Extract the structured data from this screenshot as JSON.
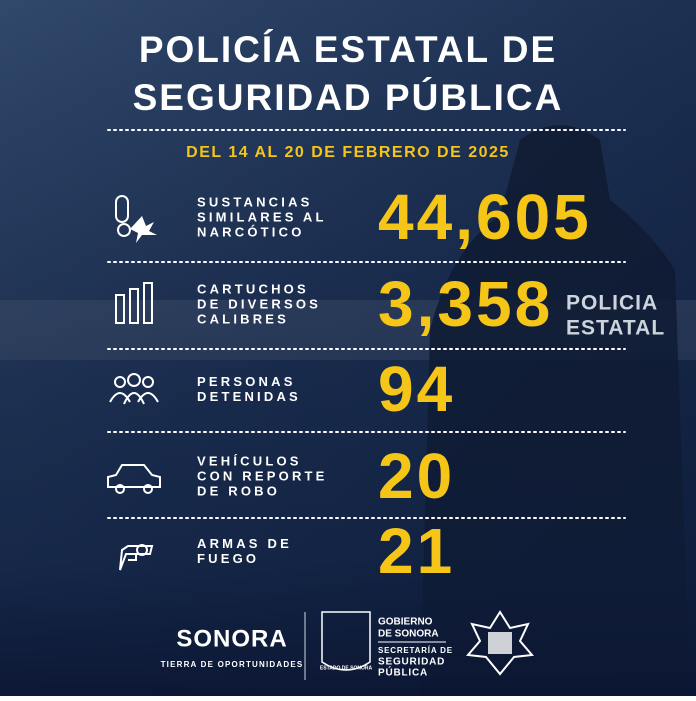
{
  "title": [
    "POLICÍA ESTATAL DE",
    "SEGURIDAD PÚBLICA"
  ],
  "date": "DEL 14 AL 20 DE FEBRERO DE 2025",
  "stats": [
    {
      "label": [
        "SUSTANCIAS",
        "SIMILARES AL",
        "NARCÓTICO"
      ],
      "value": "44,605"
    },
    {
      "label": [
        "CARTUCHOS",
        "DE DIVERSOS",
        "CALIBRES"
      ],
      "value": "3,358"
    },
    {
      "label": [
        "PERSONAS",
        "DETENIDAS"
      ],
      "value": "94"
    },
    {
      "label": [
        "VEHÍCULOS",
        "CON REPORTE",
        "DE ROBO"
      ],
      "value": "20"
    },
    {
      "label": [
        "ARMAS DE",
        "FUEGO"
      ],
      "value": "21"
    }
  ],
  "background": {
    "vest_text": [
      "POLICIA",
      "ESTATAL"
    ]
  },
  "footer": {
    "brand": "SONORA",
    "tagline": "TIERRA DE OPORTUNIDADES",
    "shield": "ESTADO DE SONORA",
    "gobierno": [
      "GOBIERNO",
      "DE SONORA"
    ],
    "secretaria": [
      "SECRETARÍA DE",
      "SEGURIDAD",
      "PÚBLICA"
    ]
  }
}
